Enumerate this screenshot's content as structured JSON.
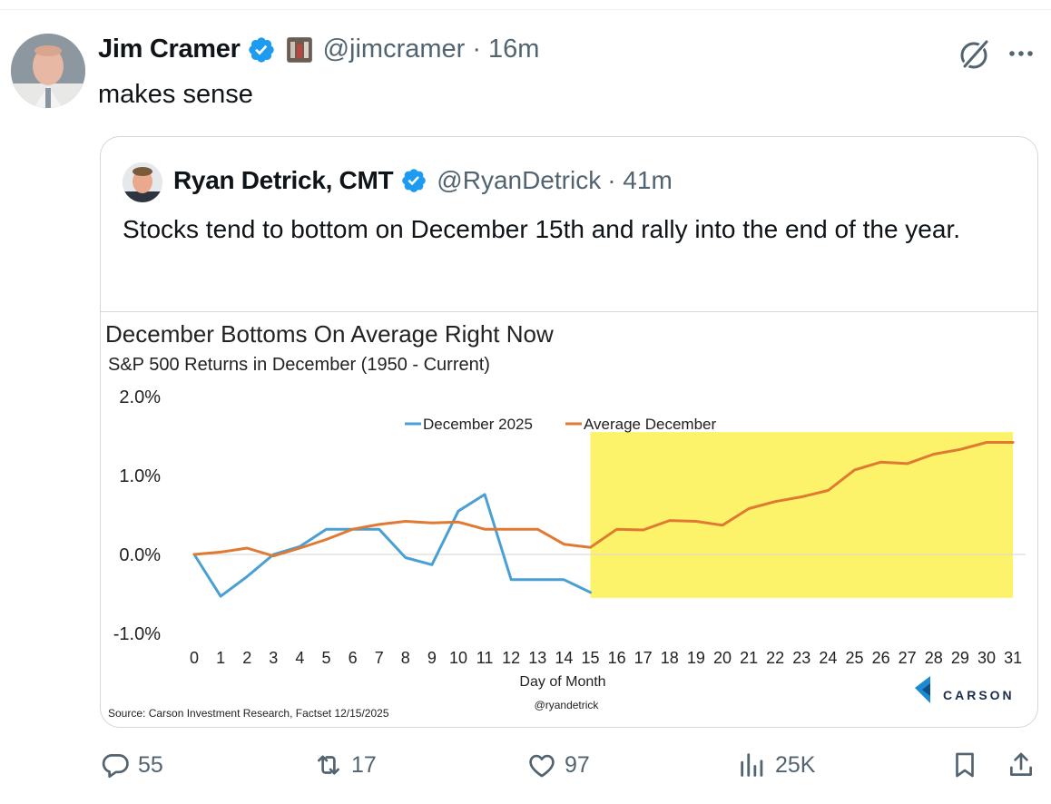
{
  "tweet": {
    "author_name": "Jim Cramer",
    "handle": "@jimcramer",
    "time": "· 16m",
    "text": "makes sense"
  },
  "quote": {
    "author_name": "Ryan Detrick, CMT",
    "handle": "@RyanDetrick",
    "time": "· 41m",
    "text": "Stocks tend to bottom on December 15th and rally into the end of the year."
  },
  "chart_data": {
    "type": "line",
    "title": "December Bottoms On Average Right Now",
    "subtitle": "S&P 500 Returns in December (1950 - Current)",
    "xlabel": "Day of Month",
    "ylabel": "",
    "ylim": [
      -1.0,
      2.0
    ],
    "yticks": [
      "2.0%",
      "1.0%",
      "0.0%",
      "-1.0%"
    ],
    "yticks_values": [
      2.0,
      1.0,
      0.0,
      -1.0
    ],
    "x": [
      0,
      1,
      2,
      3,
      4,
      5,
      6,
      7,
      8,
      9,
      10,
      11,
      12,
      13,
      14,
      15,
      16,
      17,
      18,
      19,
      20,
      21,
      22,
      23,
      24,
      25,
      26,
      27,
      28,
      29,
      30,
      31
    ],
    "legend_placement": "top-center",
    "grid": "zero line only",
    "highlight": {
      "x_range": [
        15,
        31
      ],
      "y_range": [
        -0.55,
        1.55
      ],
      "color": "#fdf36a"
    },
    "series": [
      {
        "name": "December 2025",
        "color": "#4a9fd4",
        "x": [
          0,
          1,
          2,
          3,
          4,
          5,
          6,
          7,
          8,
          9,
          10,
          11,
          12,
          13,
          14,
          15
        ],
        "values": [
          0.0,
          -0.53,
          -0.28,
          0.0,
          0.1,
          0.32,
          0.32,
          0.32,
          -0.04,
          -0.13,
          0.55,
          0.76,
          -0.32,
          -0.32,
          -0.32,
          -0.48
        ]
      },
      {
        "name": "Average December",
        "color": "#e07a32",
        "x": [
          0,
          1,
          2,
          3,
          4,
          5,
          6,
          7,
          8,
          9,
          10,
          11,
          12,
          13,
          14,
          15,
          16,
          17,
          18,
          19,
          20,
          21,
          22,
          23,
          24,
          25,
          26,
          27,
          28,
          29,
          30,
          31
        ],
        "values": [
          0.0,
          0.03,
          0.08,
          -0.02,
          0.08,
          0.19,
          0.32,
          0.38,
          0.42,
          0.4,
          0.41,
          0.32,
          0.32,
          0.32,
          0.13,
          0.09,
          0.32,
          0.31,
          0.43,
          0.42,
          0.37,
          0.58,
          0.67,
          0.73,
          0.81,
          1.07,
          1.17,
          1.15,
          1.27,
          1.33,
          1.42,
          1.42
        ]
      }
    ],
    "source": "Source: Carson Investment Research, Factset 12/15/2025",
    "credit": "@ryandetrick",
    "brand": "CARSON"
  },
  "actions": {
    "replies": "55",
    "reposts": "17",
    "likes": "97",
    "views": "25K"
  },
  "colors": {
    "verified": "#1d9bf0",
    "text": "#0f1419",
    "secondary": "#536471",
    "border": "#cfd9de"
  },
  "icons": [
    "verified-badge-icon",
    "grok-icon",
    "more-icon",
    "reply-icon",
    "repost-icon",
    "like-icon",
    "views-icon",
    "bookmark-icon",
    "share-icon",
    "carson-logo-icon"
  ]
}
